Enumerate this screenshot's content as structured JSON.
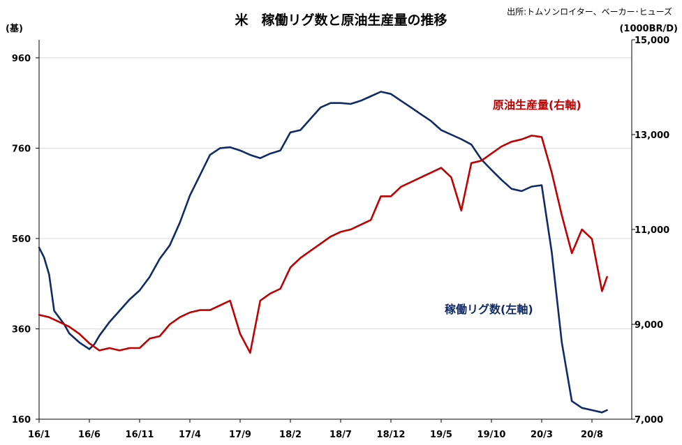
{
  "chart_data": {
    "type": "line",
    "title": "米　稼働リグ数と原油生産量の推移",
    "source": "出所:トムソンロイター、ベーカー･ヒューズ",
    "y_left_unit": "(基)",
    "y_right_unit": "(1000BR/D)",
    "x_tick_labels": [
      "16/1",
      "16/6",
      "16/11",
      "17/4",
      "17/9",
      "18/2",
      "18/7",
      "18/12",
      "19/5",
      "19/10",
      "20/3",
      "20/8"
    ],
    "y_left_ticks": [
      160,
      360,
      560,
      760,
      960
    ],
    "y_right_ticks": [
      "7,000",
      "9,000",
      "11,000",
      "13,000",
      "15,000"
    ],
    "y_left_range": [
      160,
      1000
    ],
    "y_right_range": [
      7000,
      15000
    ],
    "grid": true,
    "colors": {
      "rig": "#0f2a66",
      "oil": "#c00000",
      "grid": "#d9d9d9"
    },
    "series": [
      {
        "name": "稼働リグ数(左軸)",
        "axis": "left",
        "color": "#0f2a66",
        "points": [
          [
            "16/1",
            540
          ],
          [
            "16/1.5",
            518
          ],
          [
            "16/2",
            480
          ],
          [
            "16/2.5",
            400
          ],
          [
            "16/3",
            385
          ],
          [
            "16/3.5",
            370
          ],
          [
            "16/4",
            350
          ],
          [
            "16/5",
            330
          ],
          [
            "16/6",
            315
          ],
          [
            "16/6.5",
            326
          ],
          [
            "16/7",
            345
          ],
          [
            "16/8",
            375
          ],
          [
            "16/9",
            400
          ],
          [
            "16/10",
            425
          ],
          [
            "16/11",
            445
          ],
          [
            "16/12",
            475
          ],
          [
            "17/1",
            515
          ],
          [
            "17/2",
            545
          ],
          [
            "17/3",
            595
          ],
          [
            "17/4",
            655
          ],
          [
            "17/5",
            700
          ],
          [
            "17/6",
            745
          ],
          [
            "17/7",
            760
          ],
          [
            "17/8",
            762
          ],
          [
            "17/9",
            755
          ],
          [
            "17/10",
            745
          ],
          [
            "17/11",
            738
          ],
          [
            "17/12",
            748
          ],
          [
            "18/1",
            755
          ],
          [
            "18/2",
            795
          ],
          [
            "18/3",
            800
          ],
          [
            "18/4",
            825
          ],
          [
            "18/5",
            850
          ],
          [
            "18/6",
            860
          ],
          [
            "18/7",
            860
          ],
          [
            "18/8",
            858
          ],
          [
            "18/9",
            865
          ],
          [
            "18/10",
            875
          ],
          [
            "18/11",
            885
          ],
          [
            "18/12",
            880
          ],
          [
            "19/1",
            865
          ],
          [
            "19/2",
            850
          ],
          [
            "19/3",
            835
          ],
          [
            "19/4",
            820
          ],
          [
            "19/5",
            800
          ],
          [
            "19/6",
            790
          ],
          [
            "19/7",
            780
          ],
          [
            "19/8",
            768
          ],
          [
            "19/9",
            735
          ],
          [
            "19/10",
            712
          ],
          [
            "19/11",
            690
          ],
          [
            "19/12",
            670
          ],
          [
            "20/1",
            665
          ],
          [
            "20/2",
            675
          ],
          [
            "20/3",
            678
          ],
          [
            "20/4",
            530
          ],
          [
            "20/5",
            330
          ],
          [
            "20/6",
            200
          ],
          [
            "20/7",
            185
          ],
          [
            "20/8",
            180
          ],
          [
            "20/9",
            175
          ],
          [
            "20/9.5",
            180
          ]
        ]
      },
      {
        "name": "原油生産量(右軸)",
        "axis": "right",
        "color": "#c00000",
        "points": [
          [
            "16/1",
            9200
          ],
          [
            "16/2",
            9150
          ],
          [
            "16/3",
            9050
          ],
          [
            "16/4",
            8950
          ],
          [
            "16/5",
            8800
          ],
          [
            "16/6",
            8600
          ],
          [
            "16/7",
            8450
          ],
          [
            "16/8",
            8500
          ],
          [
            "16/9",
            8450
          ],
          [
            "16/10",
            8500
          ],
          [
            "16/11",
            8500
          ],
          [
            "16/12",
            8700
          ],
          [
            "17/1",
            8750
          ],
          [
            "17/2",
            9000
          ],
          [
            "17/3",
            9150
          ],
          [
            "17/4",
            9250
          ],
          [
            "17/5",
            9300
          ],
          [
            "17/6",
            9300
          ],
          [
            "17/7",
            9400
          ],
          [
            "17/8",
            9500
          ],
          [
            "17/9",
            8800
          ],
          [
            "17/10",
            8400
          ],
          [
            "17/11",
            9500
          ],
          [
            "17/12",
            9650
          ],
          [
            "18/1",
            9750
          ],
          [
            "18/2",
            10200
          ],
          [
            "18/3",
            10400
          ],
          [
            "18/4",
            10550
          ],
          [
            "18/5",
            10700
          ],
          [
            "18/6",
            10850
          ],
          [
            "18/7",
            10950
          ],
          [
            "18/8",
            11000
          ],
          [
            "18/9",
            11100
          ],
          [
            "18/10",
            11200
          ],
          [
            "18/11",
            11700
          ],
          [
            "18/12",
            11700
          ],
          [
            "19/1",
            11900
          ],
          [
            "19/2",
            12000
          ],
          [
            "19/3",
            12100
          ],
          [
            "19/4",
            12200
          ],
          [
            "19/5",
            12300
          ],
          [
            "19/6",
            12100
          ],
          [
            "19/7",
            11400
          ],
          [
            "19/8",
            12400
          ],
          [
            "19/9",
            12450
          ],
          [
            "19/10",
            12600
          ],
          [
            "19/11",
            12750
          ],
          [
            "19/12",
            12850
          ],
          [
            "20/1",
            12900
          ],
          [
            "20/2",
            12980
          ],
          [
            "20/3",
            12950
          ],
          [
            "20/4",
            12200
          ],
          [
            "20/5",
            11300
          ],
          [
            "20/6",
            10500
          ],
          [
            "20/7",
            11000
          ],
          [
            "20/8",
            10800
          ],
          [
            "20/9",
            9700
          ],
          [
            "20/9.5",
            10000
          ]
        ]
      }
    ]
  }
}
